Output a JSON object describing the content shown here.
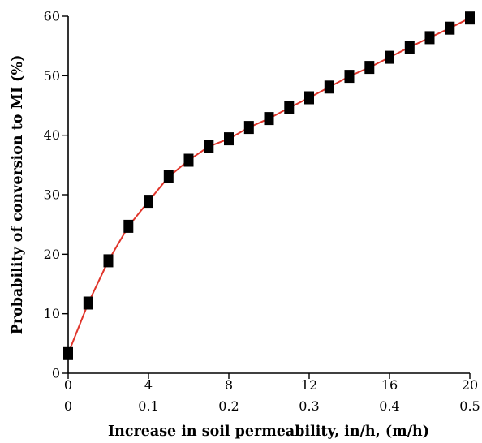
{
  "chart_data": {
    "type": "line",
    "title": "",
    "xlabel": "Increase in soil permeability, in/h, (m/h)",
    "ylabel": "Probability of conversion to MI (%)",
    "xlim": [
      0,
      20
    ],
    "ylim": [
      0,
      60
    ],
    "x_ticks": [
      "0",
      "4",
      "8",
      "12",
      "16",
      "20"
    ],
    "x_ticks_secondary": [
      "0",
      "0.1",
      "0.2",
      "0.3",
      "0.4",
      "0.5"
    ],
    "y_ticks": [
      "0",
      "10",
      "20",
      "30",
      "40",
      "50",
      "60"
    ],
    "grid": false,
    "legend": "none",
    "colors": {
      "line": "#e0352b",
      "marker": "#000000"
    },
    "series": [
      {
        "x": [
          0,
          1,
          2,
          3,
          4,
          5,
          6,
          7,
          8,
          9,
          10,
          11,
          12,
          13,
          14,
          15,
          16,
          17,
          18,
          19,
          20
        ],
        "y": [
          3.3,
          11.8,
          18.9,
          24.7,
          28.9,
          33.0,
          35.8,
          38.1,
          39.4,
          41.3,
          42.8,
          44.6,
          46.3,
          48.1,
          49.9,
          51.4,
          53.1,
          54.8,
          56.4,
          58.0,
          59.7
        ]
      }
    ]
  }
}
